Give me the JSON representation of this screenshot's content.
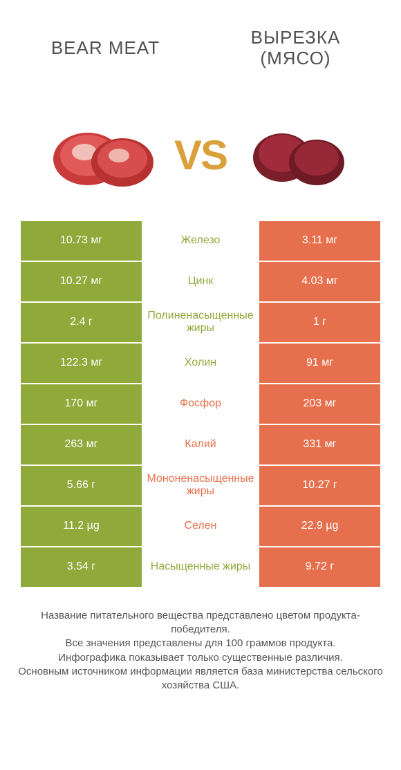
{
  "colors": {
    "green": "#90a93b",
    "orange": "#e6704d",
    "vs": "#d9a03b",
    "title": "#505050",
    "footer": "#555555",
    "white": "#ffffff"
  },
  "header": {
    "left_title": "BEAR MEAT",
    "right_title": "ВЫРЕЗКА (МЯСО)",
    "vs_label": "VS"
  },
  "rows": [
    {
      "left": "10.73 мг",
      "label": "Железо",
      "right": "3.11 мг",
      "winner": "left"
    },
    {
      "left": "10.27 мг",
      "label": "Цинк",
      "right": "4.03 мг",
      "winner": "left"
    },
    {
      "left": "2.4 г",
      "label": "Полиненасыщенные жиры",
      "right": "1 г",
      "winner": "left"
    },
    {
      "left": "122.3 мг",
      "label": "Холин",
      "right": "91 мг",
      "winner": "left"
    },
    {
      "left": "170 мг",
      "label": "Фосфор",
      "right": "203 мг",
      "winner": "right"
    },
    {
      "left": "263 мг",
      "label": "Калий",
      "right": "331 мг",
      "winner": "right"
    },
    {
      "left": "5.66 г",
      "label": "Мононенасыщенные жиры",
      "right": "10.27 г",
      "winner": "right"
    },
    {
      "left": "11.2 µg",
      "label": "Селен",
      "right": "22.9 µg",
      "winner": "right"
    },
    {
      "left": "3.54 г",
      "label": "Насыщенные жиры",
      "right": "9.72 г",
      "winner": "left"
    }
  ],
  "footer": {
    "line1": "Название питательного вещества представлено цветом продукта-победителя.",
    "line2": "Все значения представлены для 100 граммов продукта.",
    "line3": "Инфографика показывает только существенные различия.",
    "line4": "Основным источником информации является база министерства сельского хозяйства США."
  }
}
